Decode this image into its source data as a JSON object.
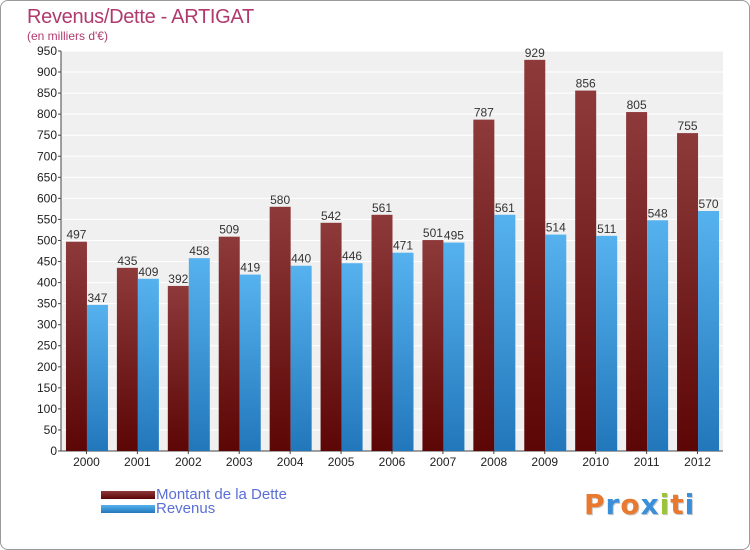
{
  "header": {
    "title": "Revenus/Dette - ARTIGAT",
    "subtitle": "(en milliers d'€)"
  },
  "logo": {
    "letters": [
      "P",
      "r",
      "o",
      "x",
      "i",
      "t",
      "i"
    ],
    "colors": [
      "#e8792e",
      "#3a8fd8",
      "#e8792e",
      "#3a8fd8",
      "#9bc43a",
      "#e8792e",
      "#3a8fd8"
    ]
  },
  "chart_data": {
    "type": "bar",
    "categories": [
      "2000",
      "2001",
      "2002",
      "2003",
      "2004",
      "2005",
      "2006",
      "2007",
      "2008",
      "2009",
      "2010",
      "2011",
      "2012"
    ],
    "series": [
      {
        "name": "Montant de la Dette",
        "color_top": "#8e3a3a",
        "color_bottom": "#5c0606",
        "values": [
          497,
          435,
          392,
          509,
          580,
          542,
          561,
          501,
          787,
          929,
          856,
          805,
          755
        ]
      },
      {
        "name": "Revenus",
        "color_top": "#56b2ee",
        "color_bottom": "#2277bb",
        "values": [
          347,
          409,
          458,
          419,
          440,
          446,
          471,
          495,
          561,
          514,
          511,
          548,
          570
        ]
      }
    ],
    "y_ticks": [
      0,
      50,
      100,
      150,
      200,
      250,
      300,
      350,
      400,
      450,
      500,
      550,
      600,
      650,
      700,
      750,
      800,
      850,
      900,
      950
    ],
    "ylim": [
      0,
      950
    ],
    "grid": true,
    "legend_position": "bottom-left"
  }
}
